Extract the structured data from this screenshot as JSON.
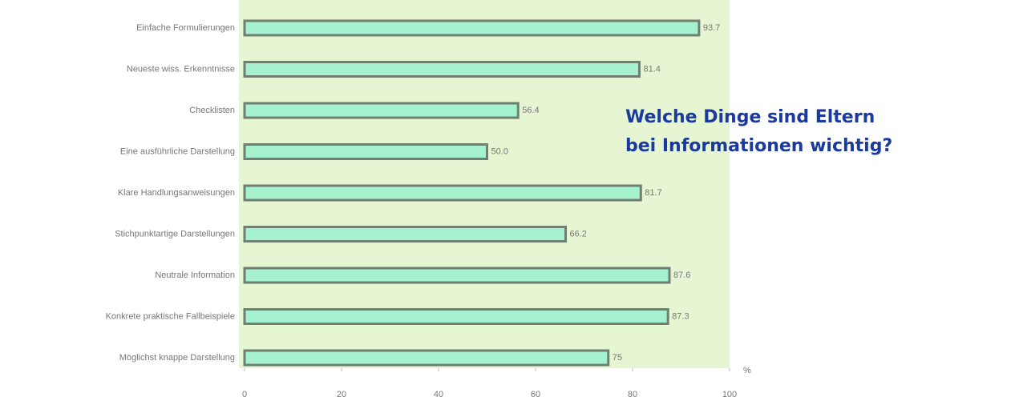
{
  "chart_data": {
    "type": "bar",
    "orientation": "horizontal",
    "title": [
      "Welche Dinge sind Eltern",
      "bei Informationen wichtig?"
    ],
    "x_unit": "%",
    "categories": [
      "Einfache Formulierungen",
      "Neueste wiss. Erkenntnisse",
      "Checklisten",
      "Eine ausführliche Darstellung",
      "Klare Handlungsanweisungen",
      "Stichpunktartige Darstellungen",
      "Neutrale Information",
      "Konkrete praktische Fallbeispiele",
      "Möglichst knappe Darstellung"
    ],
    "values": [
      93.7,
      81.4,
      56.4,
      50.0,
      81.7,
      66.2,
      87.6,
      87.3,
      75
    ],
    "value_labels": [
      "93.7",
      "81.4",
      "56.4",
      "50.0",
      "81.7",
      "66.2",
      "87.6",
      "87.3",
      "75"
    ],
    "color": "#a6f2cf",
    "xlim": [
      0,
      100
    ],
    "xticks": [
      0,
      20,
      40,
      60,
      80,
      100
    ]
  }
}
